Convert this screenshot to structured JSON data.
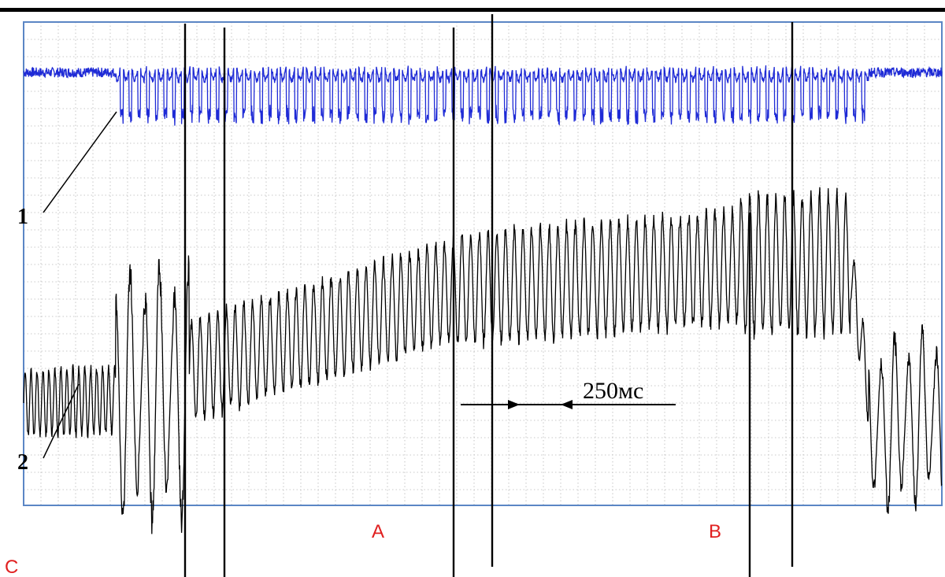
{
  "chart_data": {
    "type": "line",
    "title": "",
    "xlabel": "",
    "ylabel": "",
    "grid": true,
    "series": [
      {
        "id": "1",
        "color": "#1f2bd6",
        "segments": [
          {
            "from": 0.0,
            "to": 0.1,
            "kind": "noise",
            "base": 0.05,
            "amp": 0.08,
            "period": 0.006
          },
          {
            "from": 0.1,
            "to": 0.92,
            "kind": "pulses",
            "base": 0.05,
            "amp": 0.4,
            "period": 0.0095
          },
          {
            "from": 0.92,
            "to": 1.0,
            "kind": "noise",
            "base": 0.05,
            "amp": 0.08,
            "period": 0.006
          }
        ]
      },
      {
        "id": "2",
        "color": "#000000",
        "segments": [
          {
            "from": 0.0,
            "to": 0.1,
            "kind": "osc",
            "baseFrom": 0.3,
            "baseTo": 0.32,
            "amp": 0.3,
            "period": 0.0065
          },
          {
            "from": 0.1,
            "to": 0.18,
            "kind": "burst",
            "baseFrom": 0.36,
            "baseTo": 0.4,
            "amp": 1.2,
            "period": 0.016
          },
          {
            "from": 0.18,
            "to": 0.47,
            "kind": "osc",
            "baseFrom": 0.55,
            "baseTo": 1.2,
            "amp": 0.45,
            "period": 0.0095
          },
          {
            "from": 0.47,
            "to": 0.78,
            "kind": "osc",
            "baseFrom": 1.2,
            "baseTo": 1.38,
            "amp": 0.5,
            "period": 0.0095
          },
          {
            "from": 0.78,
            "to": 0.9,
            "kind": "osc",
            "baseFrom": 1.4,
            "baseTo": 1.4,
            "amp": 0.62,
            "period": 0.0095
          },
          {
            "from": 0.9,
            "to": 0.92,
            "kind": "drop",
            "baseFrom": 1.4,
            "baseTo": 0.4,
            "amp": 0.3,
            "period": 0.0095
          },
          {
            "from": 0.92,
            "to": 1.0,
            "kind": "burst",
            "baseFrom": 0.1,
            "baseTo": 0.2,
            "amp": 0.8,
            "period": 0.015
          }
        ]
      }
    ],
    "trace_labels": [
      "1",
      "2"
    ],
    "scale_bar": {
      "label": "250мс"
    },
    "region_labels": [
      {
        "text": "A",
        "color": "#e02020"
      },
      {
        "text": "B",
        "color": "#e02020"
      },
      {
        "text": "C",
        "color": "#e02020"
      }
    ]
  }
}
